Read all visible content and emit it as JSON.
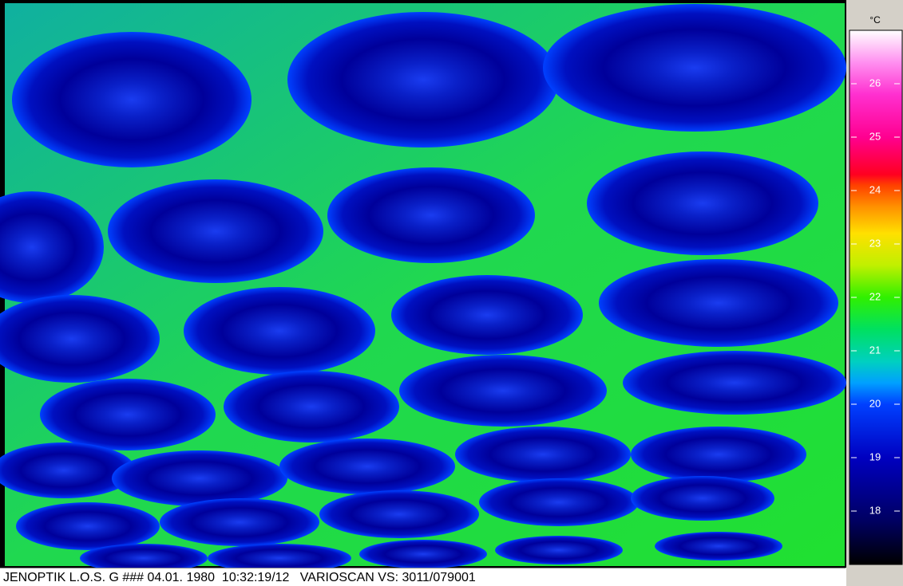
{
  "colorbar": {
    "unit": "°C",
    "range": [
      17,
      27
    ],
    "ticks": [
      18,
      19,
      20,
      21,
      22,
      23,
      24,
      25,
      26
    ]
  },
  "status_bar": {
    "text": "JENOPTIK L.O.S. G ### 04.01. 1980  10:32:19/12   VARIOSCAN VS: 3011/079001"
  }
}
